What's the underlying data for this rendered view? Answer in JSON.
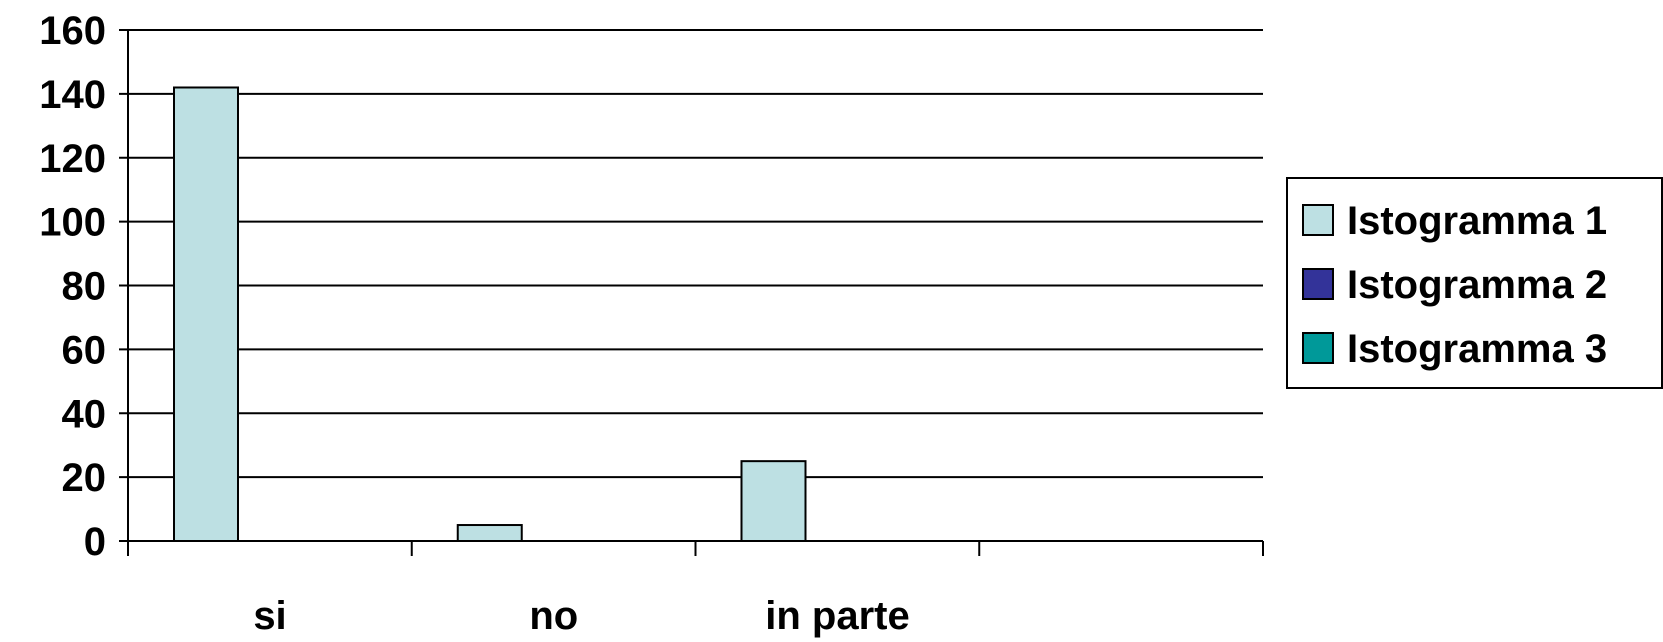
{
  "chart_data": {
    "type": "bar",
    "title": "",
    "xlabel": "",
    "ylabel": "",
    "categories": [
      "si",
      "no",
      "in parte",
      ""
    ],
    "series": [
      {
        "name": "Istogramma 1",
        "color": "#bde0e3",
        "values": [
          142,
          5,
          25,
          null
        ]
      },
      {
        "name": "Istogramma 2",
        "color": "#333399",
        "values": [
          null,
          null,
          null,
          null
        ]
      },
      {
        "name": "Istogramma 3",
        "color": "#009999",
        "values": [
          null,
          null,
          null,
          null
        ]
      }
    ],
    "ylim": [
      0,
      160
    ],
    "yticks": [
      0,
      20,
      40,
      60,
      80,
      100,
      120,
      140,
      160
    ],
    "grid": true,
    "legend_position": "right"
  }
}
